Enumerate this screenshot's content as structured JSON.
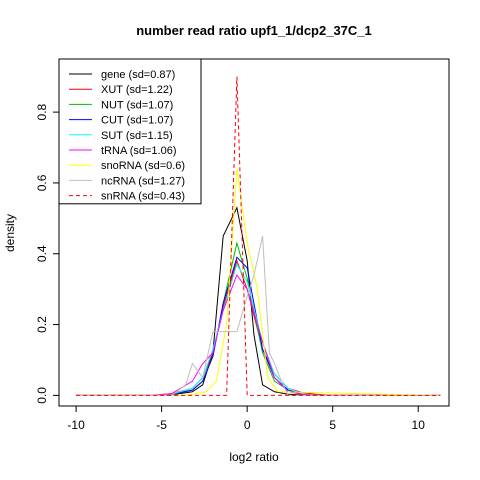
{
  "chart_data": {
    "type": "line",
    "title": "number read ratio upf1_1/dcp2_37C_1",
    "xlabel": "log2 ratio",
    "ylabel": "density",
    "xlim": [
      -11.0,
      11.8
    ],
    "ylim": [
      -0.03,
      0.95
    ],
    "x_ticks": [
      -10,
      -5,
      0,
      5,
      10
    ],
    "x_tick_labels": [
      "-10",
      "-5",
      "0",
      "5",
      "10"
    ],
    "y_ticks": [
      0.0,
      0.2,
      0.4,
      0.6,
      0.8
    ],
    "y_tick_labels": [
      "0.0",
      "0.2",
      "0.4",
      "0.6",
      "0.8"
    ],
    "grid": false,
    "legend_position": "top-left",
    "series": [
      {
        "name": "gene (sd=0.87)",
        "color": "#000000",
        "dash": "solid",
        "x": [
          -10,
          -5.6,
          -4.4,
          -3.2,
          -2.6,
          -2.0,
          -1.4,
          -0.6,
          0.0,
          0.4,
          0.9,
          1.6,
          2.4,
          3.2,
          4.0,
          11.3
        ],
        "y": [
          0.0,
          0.0,
          0.002,
          0.01,
          0.03,
          0.12,
          0.45,
          0.53,
          0.38,
          0.17,
          0.03,
          0.01,
          0.003,
          0.001,
          0.0,
          0.0
        ]
      },
      {
        "name": "XUT (sd=1.22)",
        "color": "#ff0000",
        "dash": "solid",
        "x": [
          -10,
          -5.6,
          -4.4,
          -3.2,
          -2.6,
          -2.0,
          -1.4,
          -0.6,
          0.0,
          0.9,
          1.6,
          2.4,
          3.2,
          4.0,
          5.0,
          11.3
        ],
        "y": [
          0.0,
          0.0,
          0.005,
          0.02,
          0.05,
          0.12,
          0.25,
          0.38,
          0.3,
          0.13,
          0.06,
          0.02,
          0.008,
          0.003,
          0.0,
          0.0
        ]
      },
      {
        "name": "NUT (sd=1.07)",
        "color": "#00bb00",
        "dash": "solid",
        "x": [
          -10,
          -5.6,
          -4.4,
          -3.2,
          -2.6,
          -2.0,
          -1.4,
          -0.6,
          0.0,
          0.9,
          1.6,
          2.4,
          3.2,
          4.0,
          11.3
        ],
        "y": [
          0.0,
          0.0,
          0.003,
          0.015,
          0.04,
          0.11,
          0.26,
          0.43,
          0.33,
          0.12,
          0.04,
          0.015,
          0.004,
          0.0,
          0.0
        ]
      },
      {
        "name": "CUT (sd=1.07)",
        "color": "#0000ff",
        "dash": "solid",
        "x": [
          -10,
          -5.6,
          -4.4,
          -3.2,
          -2.6,
          -2.0,
          -1.4,
          -0.6,
          0.0,
          0.9,
          1.6,
          2.4,
          3.2,
          4.0,
          11.3
        ],
        "y": [
          0.0,
          0.0,
          0.003,
          0.015,
          0.04,
          0.11,
          0.26,
          0.39,
          0.36,
          0.13,
          0.05,
          0.015,
          0.004,
          0.0,
          0.0
        ]
      },
      {
        "name": "SUT (sd=1.15)",
        "color": "#00ffff",
        "dash": "solid",
        "x": [
          -10,
          -5.6,
          -4.4,
          -3.2,
          -2.6,
          -2.0,
          -1.4,
          -0.6,
          0.0,
          0.9,
          1.6,
          2.4,
          3.2,
          4.0,
          11.3
        ],
        "y": [
          0.0,
          0.0,
          0.004,
          0.02,
          0.05,
          0.13,
          0.24,
          0.37,
          0.32,
          0.15,
          0.06,
          0.02,
          0.005,
          0.0,
          0.0
        ]
      },
      {
        "name": "tRNA (sd=1.06)",
        "color": "#ff00ff",
        "dash": "solid",
        "x": [
          -10,
          -5.6,
          -4.4,
          -3.2,
          -2.6,
          -2.0,
          -1.4,
          -0.6,
          0.0,
          0.9,
          1.6,
          2.4,
          3.2,
          4.0,
          11.3
        ],
        "y": [
          0.0,
          0.0,
          0.005,
          0.04,
          0.09,
          0.12,
          0.24,
          0.34,
          0.3,
          0.15,
          0.05,
          0.01,
          0.003,
          0.0,
          0.0
        ]
      },
      {
        "name": "snoRNA (sd=0.6)",
        "color": "#ffff00",
        "dash": "solid",
        "x": [
          -10,
          -3.6,
          -2.4,
          -1.8,
          -1.2,
          -0.6,
          0.0,
          0.6,
          1.2,
          1.8,
          11.3
        ],
        "y": [
          0.0,
          0.0,
          0.01,
          0.04,
          0.2,
          0.64,
          0.43,
          0.3,
          0.05,
          0.01,
          0.0
        ]
      },
      {
        "name": "ncRNA (sd=1.27)",
        "color": "#bebebe",
        "dash": "solid",
        "x": [
          -10,
          -4.4,
          -3.6,
          -3.2,
          -2.6,
          -2.0,
          -1.4,
          -0.6,
          0.0,
          0.4,
          0.9,
          1.3,
          1.6,
          2.0,
          2.4,
          3.2,
          11.3
        ],
        "y": [
          0.0,
          0.0,
          0.03,
          0.09,
          0.05,
          0.18,
          0.18,
          0.18,
          0.28,
          0.34,
          0.45,
          0.12,
          0.09,
          0.04,
          0.0,
          0.0,
          0.0
        ]
      },
      {
        "name": "snRNA (sd=0.43)",
        "color": "#ff0000",
        "dash": "dashed",
        "x": [
          -10,
          -1.8,
          -1.2,
          -0.6,
          0.0,
          0.6,
          1.2,
          11.3
        ],
        "y": [
          0.0,
          0.0,
          0.0,
          0.9,
          0.0,
          0.0,
          0.0,
          0.0
        ]
      }
    ]
  }
}
